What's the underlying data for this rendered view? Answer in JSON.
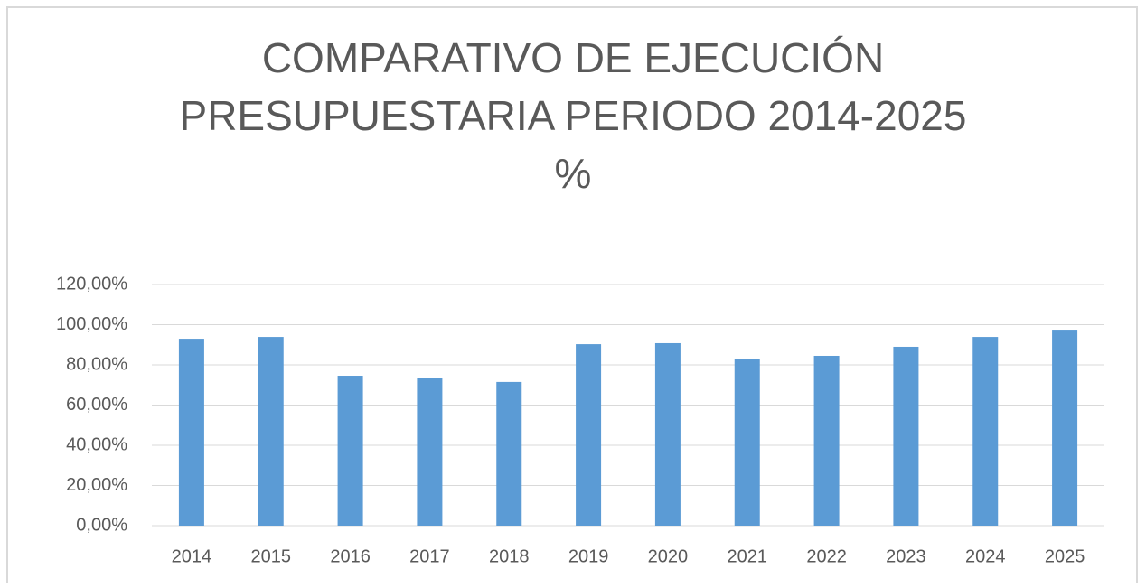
{
  "chart_data": {
    "type": "bar",
    "title": [
      "COMPARATIVO DE EJECUCIÓN",
      "PRESUPUESTARIA PERIODO 2014-2025",
      "%"
    ],
    "categories": [
      "2014",
      "2015",
      "2016",
      "2017",
      "2018",
      "2019",
      "2020",
      "2021",
      "2022",
      "2023",
      "2024",
      "2025"
    ],
    "values": [
      93.0,
      93.9,
      74.6,
      73.7,
      71.5,
      90.3,
      90.8,
      83.1,
      84.5,
      89.0,
      93.9,
      97.5
    ],
    "color": "#5b9bd5",
    "ylim": [
      0,
      120
    ],
    "yticks": [
      {
        "value": 0,
        "label": "0,00%"
      },
      {
        "value": 20,
        "label": "20,00%"
      },
      {
        "value": 40,
        "label": "40,00%"
      },
      {
        "value": 60,
        "label": "60,00%"
      },
      {
        "value": 80,
        "label": "80,00%"
      },
      {
        "value": 100,
        "label": "100,00%"
      },
      {
        "value": 120,
        "label": "120,00%"
      }
    ],
    "grid": true
  }
}
